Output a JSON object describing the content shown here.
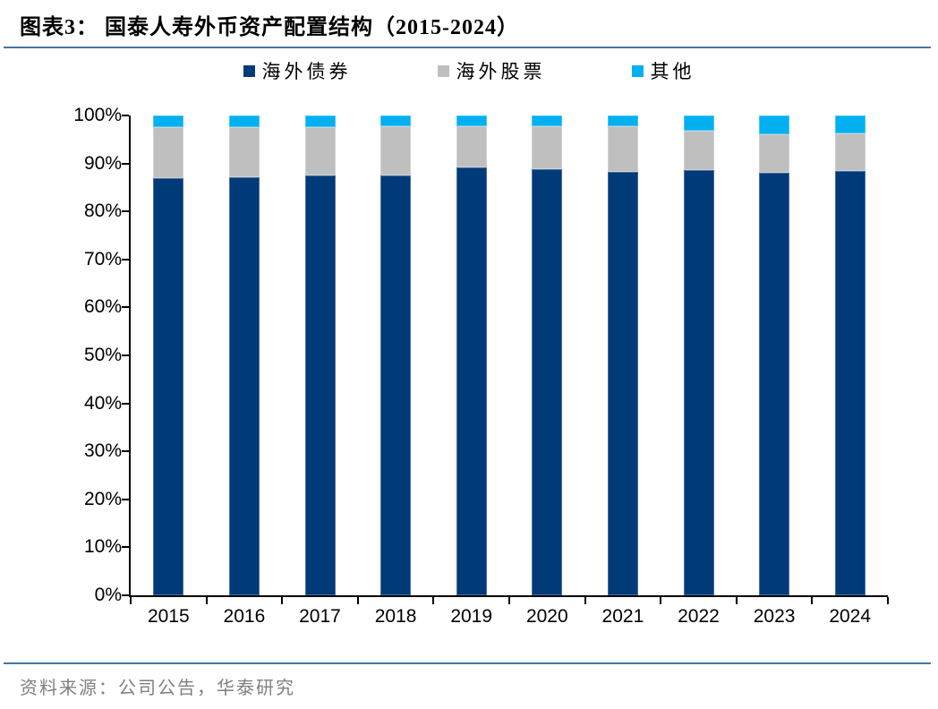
{
  "header": {
    "title": "图表3：  国泰人寿外币资产配置结构（2015-2024）"
  },
  "footer": {
    "source": "资料来源：公司公告，华泰研究"
  },
  "colors": {
    "rule": "#4674A8",
    "axis": "#000000",
    "source_text": "#7F7F7F",
    "series_overseas_bonds": "#003A78",
    "series_overseas_stocks": "#BFBFBF",
    "series_other": "#00B0F0"
  },
  "chart_data": {
    "type": "bar",
    "stacked": true,
    "percent": true,
    "title": "国泰人寿外币资产配置结构（2015-2024）",
    "categories": [
      "2015",
      "2016",
      "2017",
      "2018",
      "2019",
      "2020",
      "2021",
      "2022",
      "2023",
      "2024"
    ],
    "series": [
      {
        "key": "overseas-bonds",
        "name": "海外债券",
        "color": "#003A78",
        "values": [
          86.9,
          87.2,
          87.5,
          87.5,
          89.1,
          88.9,
          88.2,
          88.6,
          88.0,
          88.4
        ]
      },
      {
        "key": "overseas-stocks",
        "name": "海外股票",
        "color": "#BFBFBF",
        "values": [
          10.7,
          10.4,
          10.1,
          10.2,
          8.6,
          8.8,
          9.5,
          8.2,
          8.0,
          7.8
        ]
      },
      {
        "key": "other",
        "name": "其他",
        "color": "#00B0F0",
        "values": [
          2.4,
          2.4,
          2.4,
          2.3,
          2.3,
          2.3,
          2.3,
          3.2,
          4.0,
          3.8
        ]
      }
    ],
    "xlabel": "",
    "ylabel": "",
    "ylim": [
      0,
      100
    ],
    "yticks": [
      "0%",
      "10%",
      "20%",
      "30%",
      "40%",
      "50%",
      "60%",
      "70%",
      "80%",
      "90%",
      "100%"
    ],
    "grid": false,
    "legend_position": "top"
  }
}
